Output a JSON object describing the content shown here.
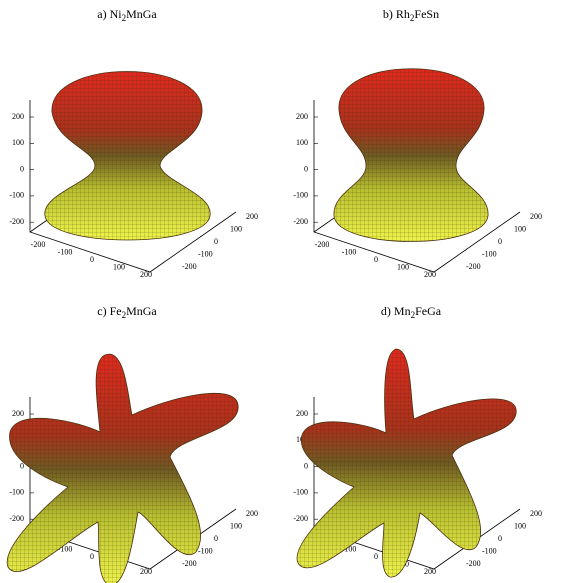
{
  "panels": [
    {
      "title": {
        "prefix": "a) Ni",
        "sub": "2",
        "rest": "MnGa"
      },
      "zticks": [
        200,
        100,
        0,
        -100,
        -200
      ],
      "xticks": [
        -200,
        -100,
        0,
        100,
        200
      ],
      "yticks": [
        -200,
        -100,
        0,
        100,
        200
      ]
    },
    {
      "title": {
        "prefix": "b) Rh",
        "sub": "2",
        "rest": "FeSn"
      },
      "zticks": [
        200,
        100,
        0,
        -100,
        -200
      ],
      "xticks": [
        -200,
        -100,
        0,
        100,
        200
      ],
      "yticks": [
        -200,
        -100,
        0,
        100,
        200
      ]
    },
    {
      "title": {
        "prefix": "c) Fe",
        "sub": "2",
        "rest": "MnGa"
      },
      "zticks": [
        200,
        100,
        0,
        -100,
        -200
      ],
      "xticks": [
        -200,
        -100,
        0,
        100,
        200
      ],
      "yticks": [
        -200,
        -100,
        0,
        100,
        200
      ]
    },
    {
      "title": {
        "prefix": "d) Mn",
        "sub": "2",
        "rest": "FeGa"
      },
      "zticks": [
        200,
        100,
        0,
        -100,
        -200
      ],
      "xticks": [
        -200,
        -100,
        0,
        100,
        200
      ],
      "yticks": [
        -200,
        -100,
        0,
        100,
        200
      ]
    }
  ]
}
